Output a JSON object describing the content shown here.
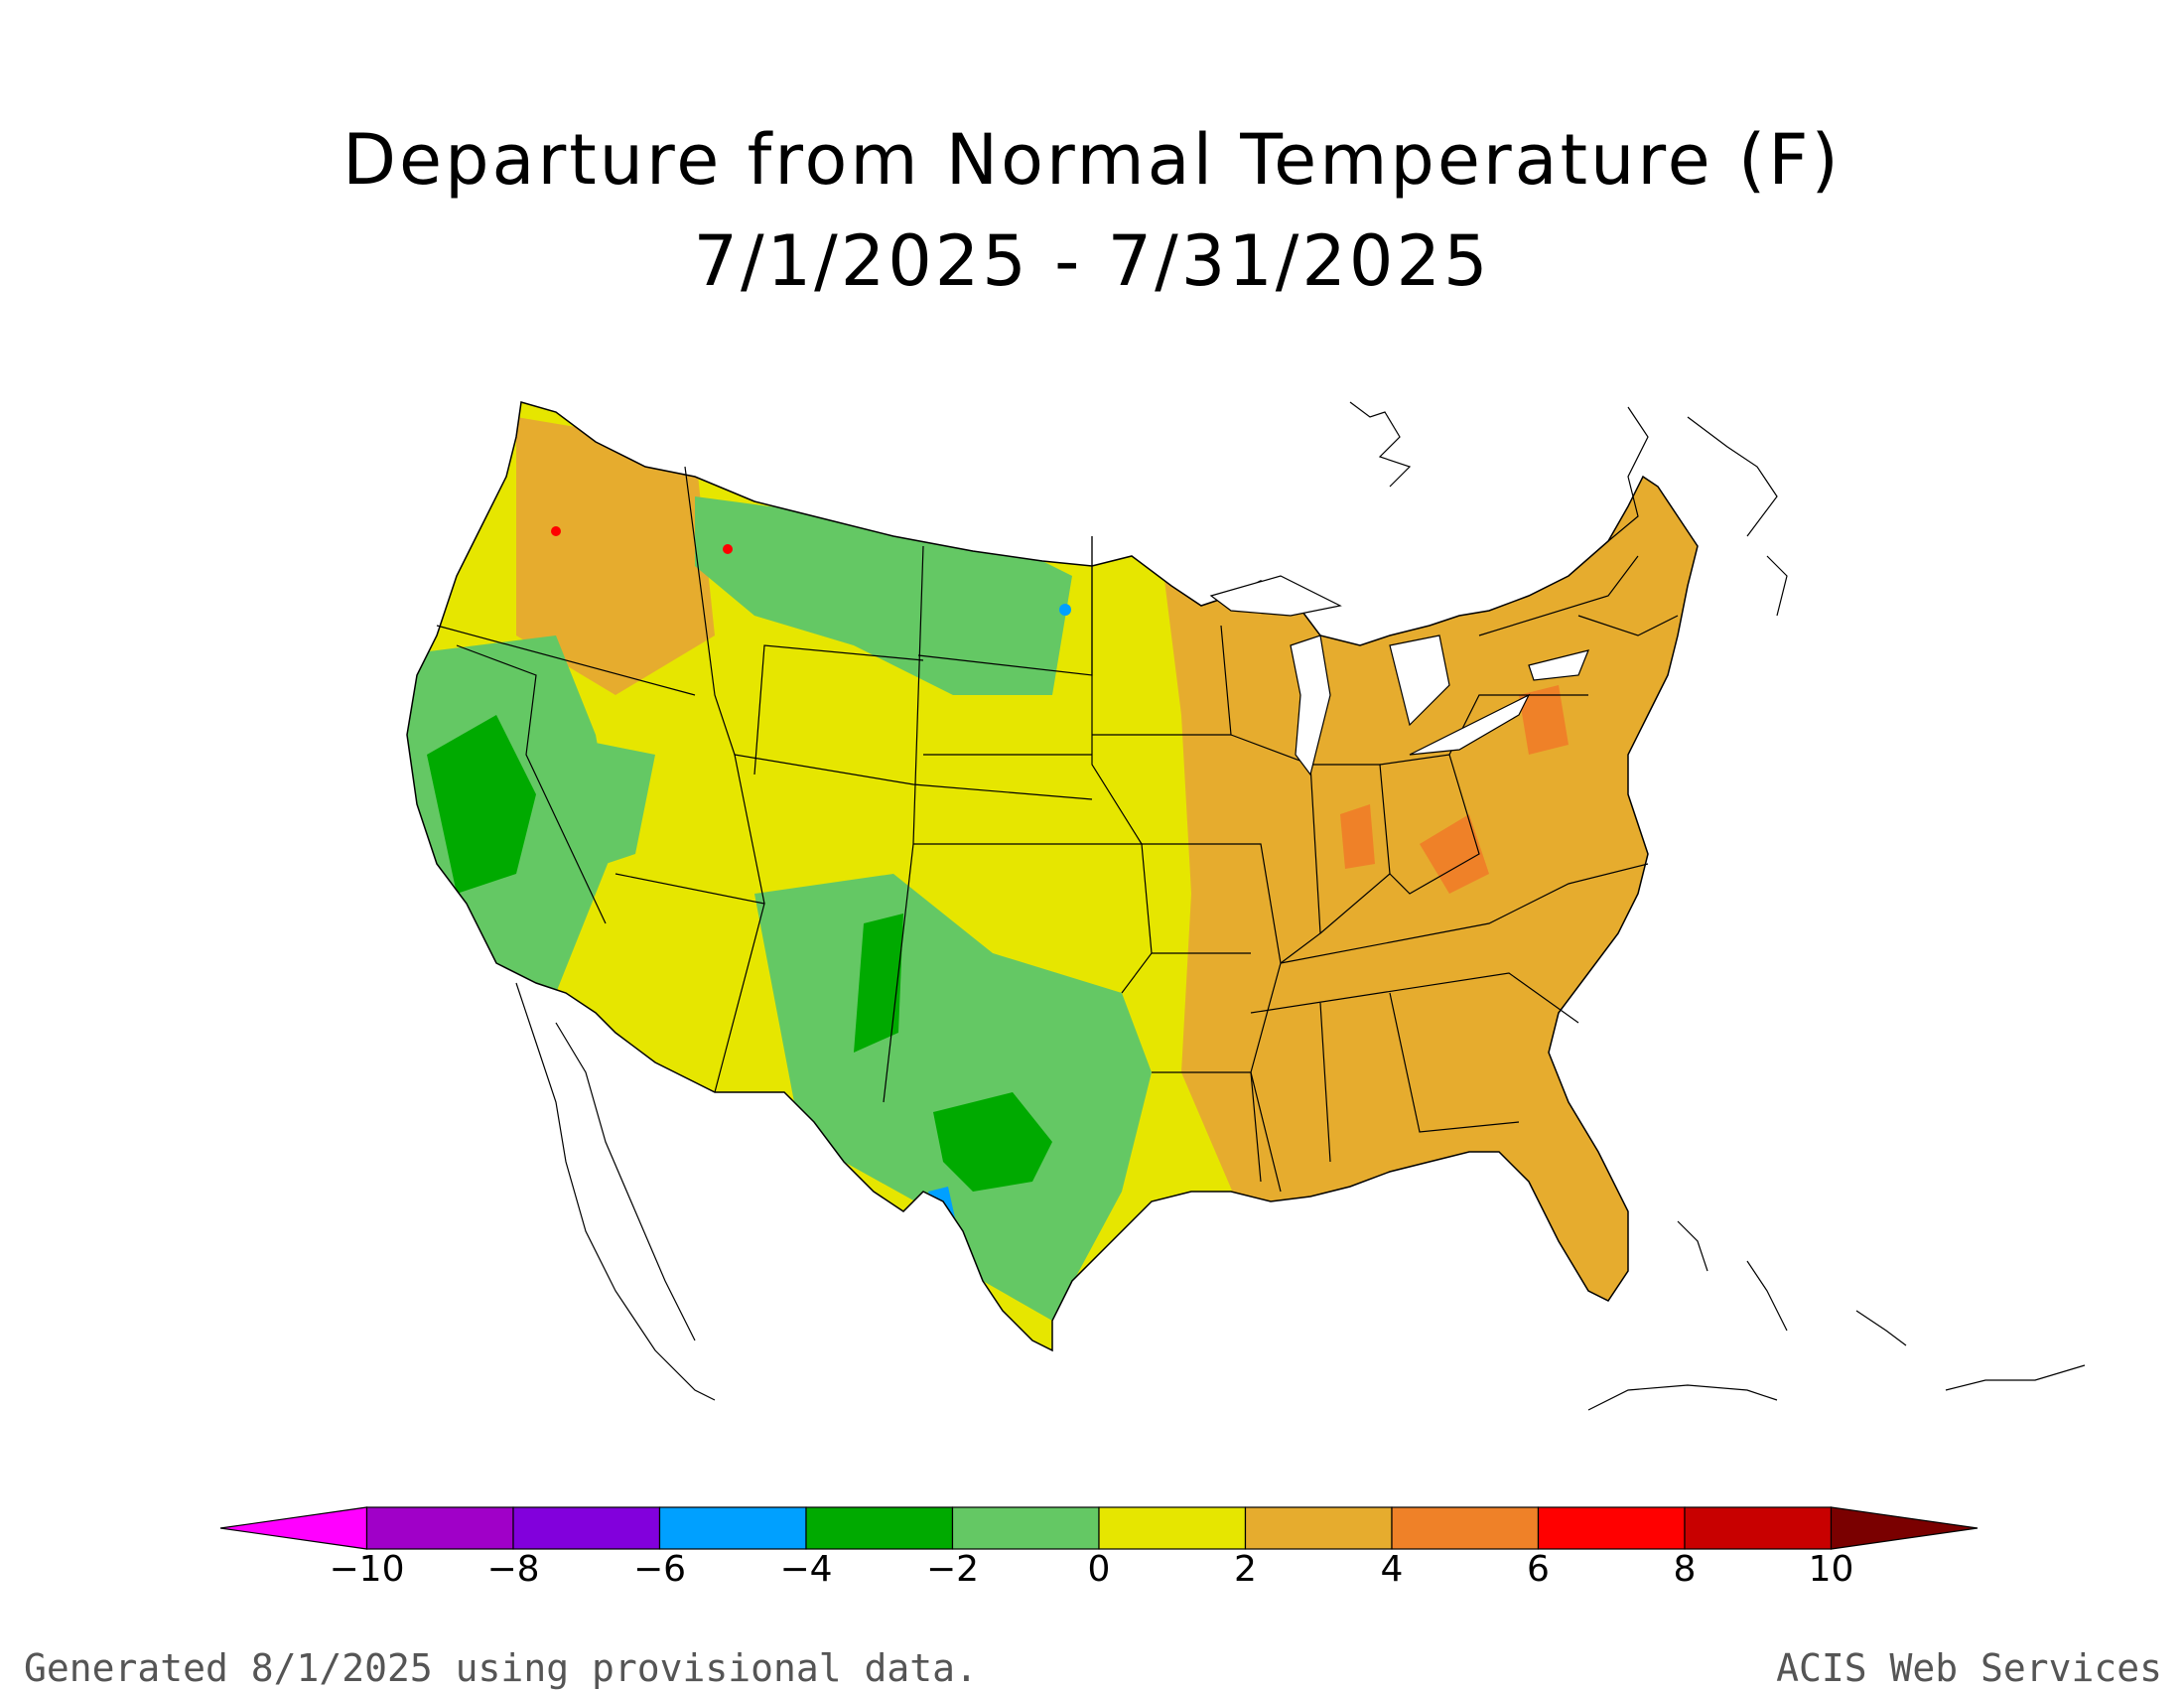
{
  "title": {
    "line1": "Departure from Normal Temperature (F)",
    "line2": "7/1/2025 - 7/31/2025"
  },
  "colors": {
    "neutral_low": "#e6e600",
    "neutral_high": "#e6ac2e",
    "warm": "#ef8128",
    "hot": "#ff0000",
    "cool": "#64c864",
    "cold": "#00aa00",
    "very_cold": "#00a0ff",
    "border": "#000000"
  },
  "colorbar": {
    "bins": [
      {
        "from": -12,
        "to": -10,
        "color": "#ff00ff"
      },
      {
        "from": -10,
        "to": -8,
        "color": "#a000c8"
      },
      {
        "from": -8,
        "to": -6,
        "color": "#8200dc"
      },
      {
        "from": -6,
        "to": -4,
        "color": "#00a0ff"
      },
      {
        "from": -4,
        "to": -2,
        "color": "#00aa00"
      },
      {
        "from": -2,
        "to": 0,
        "color": "#64c864"
      },
      {
        "from": 0,
        "to": 2,
        "color": "#e6e600"
      },
      {
        "from": 2,
        "to": 4,
        "color": "#e6ac2e"
      },
      {
        "from": 4,
        "to": 6,
        "color": "#ef8128"
      },
      {
        "from": 6,
        "to": 8,
        "color": "#ff0000"
      },
      {
        "from": 8,
        "to": 10,
        "color": "#c80000"
      },
      {
        "from": 10,
        "to": 12,
        "color": "#7a0000"
      }
    ],
    "tick_labels": [
      "-10",
      "-8",
      "-6",
      "-4",
      "-2",
      "0",
      "2",
      "4",
      "6",
      "8",
      "10"
    ]
  },
  "footer": {
    "left": "Generated 8/1/2025 using provisional data.",
    "right": "ACIS Web Services"
  }
}
